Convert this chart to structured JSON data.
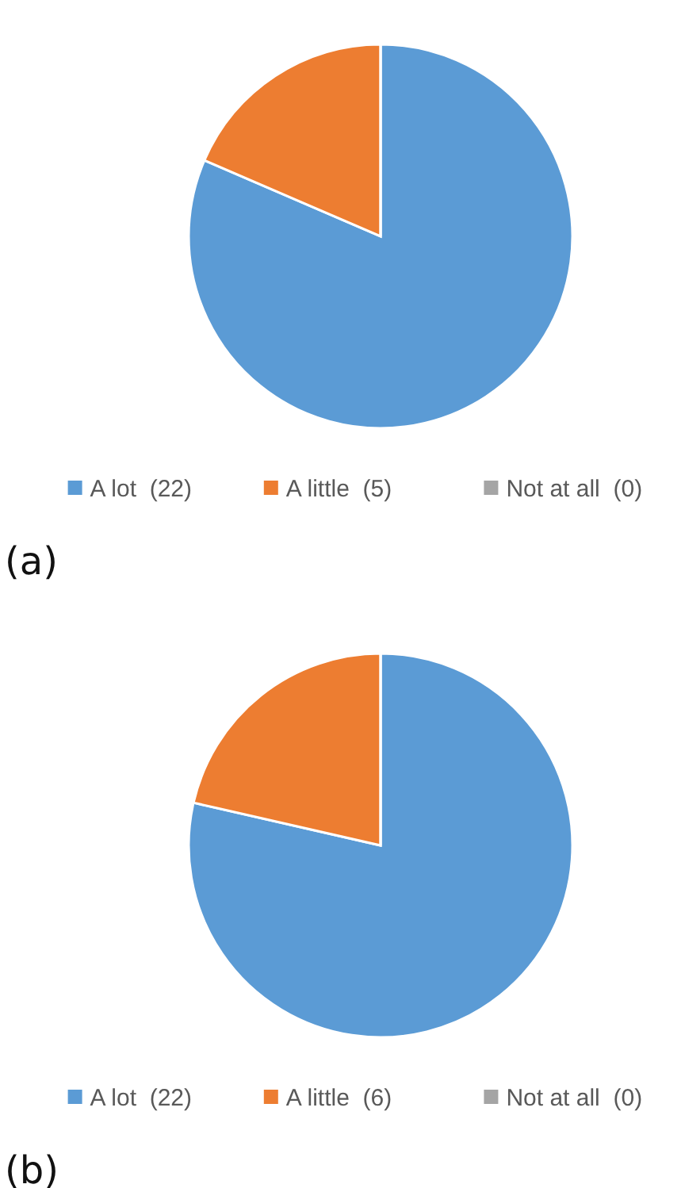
{
  "chart_data": [
    {
      "type": "pie",
      "categories": [
        "A lot  (22)",
        "A little  (5)",
        "Not at all  (0)"
      ],
      "values": [
        22,
        5,
        0
      ],
      "colors": [
        "#5b9bd5",
        "#ed7d31",
        "#a5a5a5"
      ],
      "legend": "bottom",
      "annotations": [
        "(a)"
      ]
    },
    {
      "type": "pie",
      "categories": [
        "A lot  (22)",
        "A little  (6)",
        "Not at all  (0)"
      ],
      "values": [
        22,
        6,
        0
      ],
      "colors": [
        "#5b9bd5",
        "#ed7d31",
        "#a5a5a5"
      ],
      "legend": "bottom",
      "annotations": [
        "(b)"
      ]
    }
  ]
}
